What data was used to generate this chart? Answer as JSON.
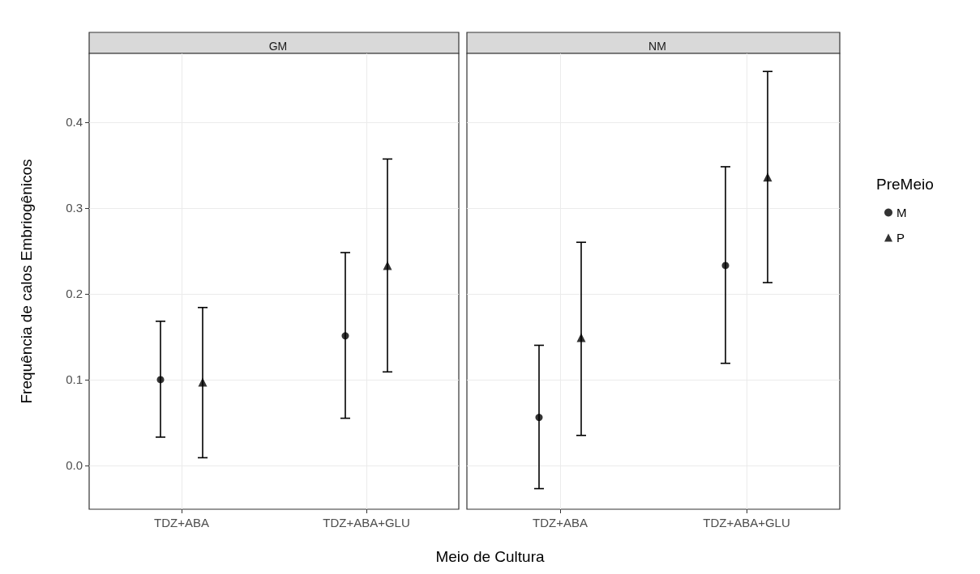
{
  "chart_data": [
    {
      "type": "scatter",
      "title": "GM",
      "xlabel": "Meio de Cultura",
      "ylabel": "Frequência de calos Embriogênicos",
      "categories": [
        "TDZ+ABA",
        "TDZ+ABA+GLU"
      ],
      "ylim": [
        -0.051,
        0.48
      ],
      "yticks": [
        {
          "value": 0,
          "label": "0.0"
        },
        0.1,
        0.2,
        0.3,
        0.4
      ],
      "grid": true,
      "legend": false,
      "series": [
        {
          "color": "#000000",
          "marker": "circle",
          "values": [
            0.1,
            0.151
          ],
          "errors": [
            [
              0.033,
              0.168
            ],
            [
              0.055,
              0.248
            ]
          ]
        },
        {
          "color": "#000000",
          "marker": "triangle",
          "values": [
            0.097,
            0.233
          ],
          "errors": [
            [
              0.009,
              0.184
            ],
            [
              0.109,
              0.357
            ]
          ]
        }
      ]
    },
    {
      "type": "scatter",
      "title": "NM",
      "categories": [
        "TDZ+ABA",
        "TDZ+ABA+GLU"
      ],
      "ylim": [
        -0.051,
        0.48
      ],
      "yticks": [
        0,
        0.1,
        0.2,
        0.3,
        0.4
      ],
      "grid": true,
      "legend": "right",
      "legend_title": "PreMeio",
      "tick_labels": "x",
      "series": [
        {
          "name": "M",
          "color": "#000000",
          "marker": "circle",
          "values": [
            0.056,
            0.233
          ],
          "errors": [
            [
              -0.027,
              0.14
            ],
            [
              0.119,
              0.348
            ]
          ]
        },
        {
          "name": "P",
          "color": "#000000",
          "marker": "triangle",
          "values": [
            0.149,
            0.336
          ],
          "errors": [
            [
              0.035,
              0.26
            ],
            [
              0.213,
              0.459
            ]
          ]
        }
      ]
    }
  ]
}
